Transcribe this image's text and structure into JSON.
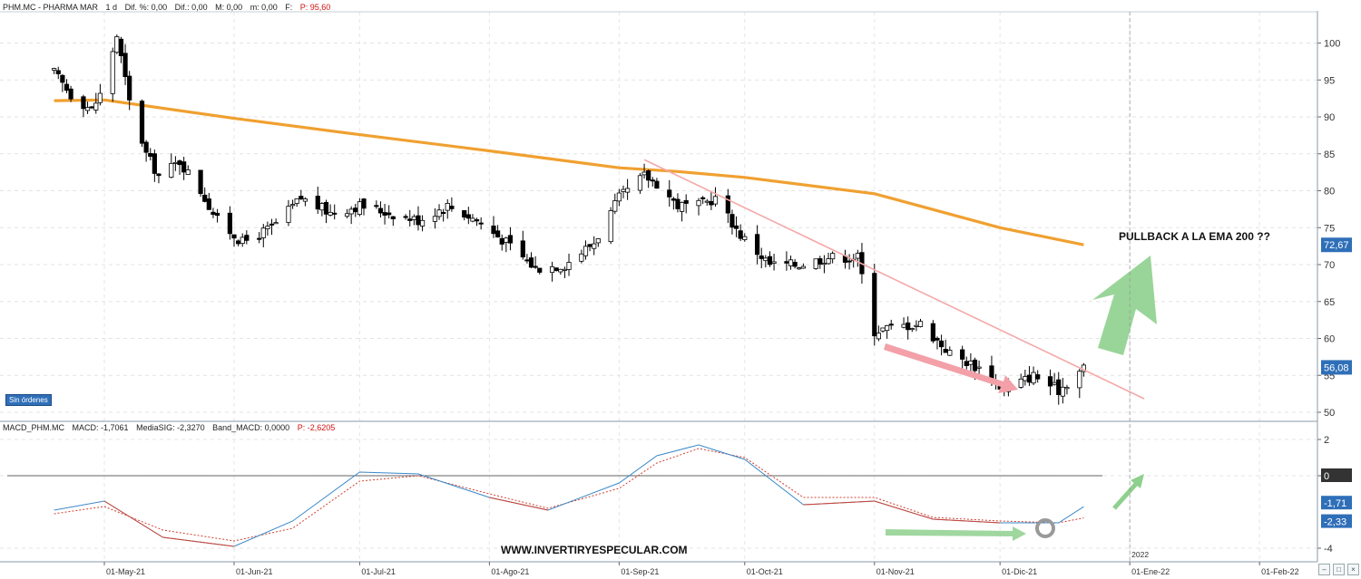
{
  "price_panel": {
    "header": {
      "symbol": "PHM.MC - PHARMA MAR",
      "interval": "1 d",
      "diff_pct": "Dif. %: 0,00",
      "diff": "Dif.: 0,00",
      "max": "M: 0,00",
      "min": "m: 0,00",
      "f": "F:",
      "p": "P: 95,60"
    },
    "badge": "Sin órdenes",
    "annotation": "PULLBACK A LA EMA 200 ??",
    "last_ema_label": "72,67",
    "last_price_label": "56,08"
  },
  "macd_panel": {
    "header": {
      "name": "MACD_PHM.MC",
      "macd": "MACD: -1,7061",
      "signal": "MediaSIG: -2,3270",
      "band": "Band_MACD: 0,0000",
      "p": "P: -2,6205"
    },
    "watermark": "WWW.INVERTIRYESPECULAR.COM",
    "last_macd_label": "-1,71",
    "last_signal_label": "-2,33",
    "zero_label": "0"
  },
  "year_marker": "2022",
  "colors": {
    "ema": "#f0a030",
    "macd": "#3a88c8",
    "signal": "#d04030",
    "trendline": "#f4a8a8",
    "down_arrow": "#f3a0a8",
    "up_arrow": "#8ed08e",
    "candle_bear": "#000000",
    "candle_bull": "#ffffff",
    "axis_label_bg": "#2f6fb8"
  },
  "chart_data": [
    {
      "type": "candlestick",
      "title": "PHM.MC - PHARMA MAR",
      "ylim": [
        48,
        104
      ],
      "y_ticks": [
        50,
        55,
        60,
        65,
        70,
        75,
        80,
        85,
        90,
        95,
        100
      ],
      "x_tick_labels": [
        "01-May-21",
        "01-Jun-21",
        "01-Jul-21",
        "01-Ago-21",
        "01-Sep-21",
        "01-Oct-21",
        "01-Nov-21",
        "01-Dic-21",
        "01-Ene-22",
        "01-Feb-22"
      ],
      "series": [
        {
          "type": "close_approx",
          "x": [
            "2021-04-19",
            "2021-04-23",
            "2021-04-28",
            "2021-04-30",
            "2021-05-04",
            "2021-05-07",
            "2021-05-11",
            "2021-05-14",
            "2021-05-19",
            "2021-05-24",
            "2021-05-28",
            "2021-06-03",
            "2021-06-10",
            "2021-06-17",
            "2021-06-24",
            "2021-07-01",
            "2021-07-08",
            "2021-07-15",
            "2021-07-22",
            "2021-07-29",
            "2021-08-05",
            "2021-08-12",
            "2021-08-19",
            "2021-08-26",
            "2021-09-01",
            "2021-09-07",
            "2021-09-10",
            "2021-09-15",
            "2021-09-20",
            "2021-09-24",
            "2021-09-30",
            "2021-10-07",
            "2021-10-14",
            "2021-10-21",
            "2021-10-28",
            "2021-11-01",
            "2021-11-05",
            "2021-11-12",
            "2021-11-19",
            "2021-11-26",
            "2021-12-02",
            "2021-12-09",
            "2021-12-15",
            "2021-12-21"
          ],
          "values": [
            96,
            93,
            91,
            93,
            101,
            92,
            85,
            82,
            84,
            80,
            76,
            73,
            75,
            79,
            77,
            78,
            77,
            76,
            78,
            76,
            73,
            69.5,
            70,
            73,
            79,
            82,
            81,
            78,
            78,
            79,
            74,
            70,
            70,
            71,
            71,
            61,
            61.5,
            62,
            58,
            56,
            53,
            55,
            53,
            56.08
          ]
        },
        {
          "name": "EMA 200",
          "type": "line",
          "x": [
            "2021-04-19",
            "2021-05-01",
            "2021-06-01",
            "2021-07-01",
            "2021-08-01",
            "2021-09-01",
            "2021-09-15",
            "2021-10-01",
            "2021-11-01",
            "2021-12-01",
            "2021-12-21"
          ],
          "values": [
            92.2,
            92.3,
            89.8,
            87.6,
            85.4,
            83.1,
            82.6,
            81.8,
            79.6,
            75.0,
            72.67
          ]
        }
      ],
      "trendline": {
        "from": [
          "2021-09-07",
          84.2
        ],
        "to": [
          "2022-01-01",
          53.3
        ]
      }
    },
    {
      "type": "line",
      "title": "MACD_PHM.MC",
      "ylim": [
        -5,
        2.5
      ],
      "y_ticks": [
        2,
        0,
        -4
      ],
      "series": [
        {
          "name": "MACD",
          "x": [
            "2021-04-19",
            "2021-05-01",
            "2021-05-15",
            "2021-06-01",
            "2021-06-15",
            "2021-07-01",
            "2021-07-15",
            "2021-08-01",
            "2021-08-15",
            "2021-09-01",
            "2021-09-10",
            "2021-09-20",
            "2021-10-01",
            "2021-10-15",
            "2021-11-01",
            "2021-11-15",
            "2021-12-01",
            "2021-12-15",
            "2021-12-21"
          ],
          "values": [
            -1.9,
            -1.4,
            -3.4,
            -3.9,
            -2.5,
            0.2,
            0.1,
            -1.2,
            -1.9,
            -0.4,
            1.1,
            1.7,
            0.9,
            -1.6,
            -1.4,
            -2.4,
            -2.6,
            -2.6,
            -1.71
          ]
        },
        {
          "name": "MediaSIG",
          "x": [
            "2021-04-19",
            "2021-05-01",
            "2021-05-15",
            "2021-06-01",
            "2021-06-15",
            "2021-07-01",
            "2021-07-15",
            "2021-08-01",
            "2021-08-15",
            "2021-09-01",
            "2021-09-10",
            "2021-09-20",
            "2021-10-01",
            "2021-10-15",
            "2021-11-01",
            "2021-11-15",
            "2021-12-01",
            "2021-12-15",
            "2021-12-21"
          ],
          "values": [
            -2.1,
            -1.7,
            -3.0,
            -3.6,
            -2.9,
            -0.3,
            0.0,
            -1.0,
            -1.8,
            -0.7,
            0.7,
            1.5,
            1.0,
            -1.2,
            -1.2,
            -2.3,
            -2.5,
            -2.6,
            -2.33
          ]
        }
      ]
    }
  ]
}
